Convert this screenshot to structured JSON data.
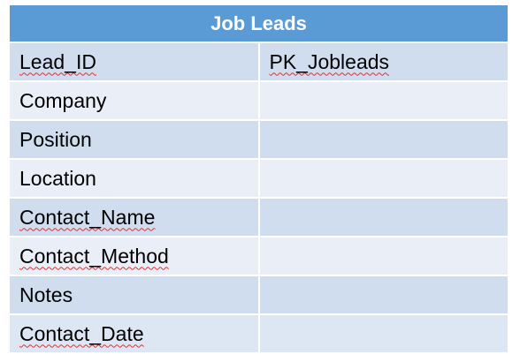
{
  "table": {
    "title": "Job Leads",
    "rows": [
      {
        "field": "Lead_ID",
        "value": "PK_Jobleads"
      },
      {
        "field": "Company",
        "value": ""
      },
      {
        "field": "Position",
        "value": ""
      },
      {
        "field": "Location",
        "value": ""
      },
      {
        "field": "Contact_Name",
        "value": ""
      },
      {
        "field": "Contact_Method",
        "value": ""
      },
      {
        "field": "Notes",
        "value": ""
      },
      {
        "field": "Contact_Date",
        "value": ""
      }
    ]
  },
  "colors": {
    "header_bg": "#5b9bd5",
    "band_dark": "#cfddef",
    "band_light": "#e9eef7",
    "spellcheck_underline": "#e03030"
  }
}
